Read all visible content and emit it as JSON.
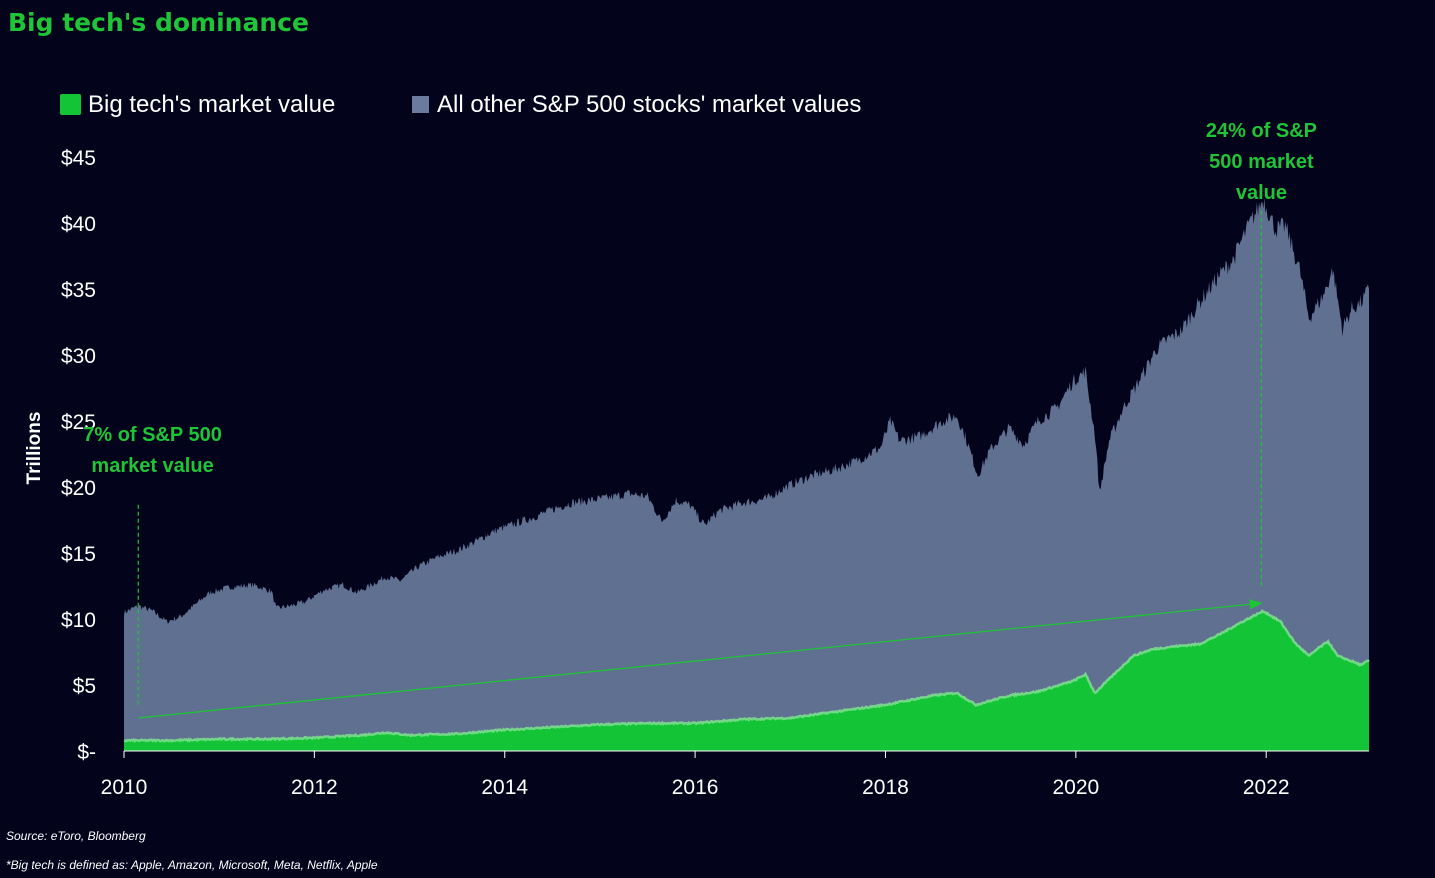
{
  "chart_data": {
    "type": "area",
    "title": "Big tech's dominance",
    "ylabel": "Trillions",
    "xlabel": "",
    "ylim": [
      0,
      45
    ],
    "xlim": [
      2010.0,
      2023.1
    ],
    "y_ticks": [
      0,
      5,
      10,
      15,
      20,
      25,
      30,
      35,
      40,
      45
    ],
    "y_tick_labels": [
      "$-",
      "$5",
      "$10",
      "$15",
      "$20",
      "$25",
      "$30",
      "$35",
      "$40",
      "$45"
    ],
    "x_ticks": [
      2010,
      2012,
      2014,
      2016,
      2018,
      2020,
      2022
    ],
    "x_tick_labels": [
      "2010",
      "2012",
      "2014",
      "2016",
      "2018",
      "2020",
      "2022"
    ],
    "grid": false,
    "legend_position": "top-left",
    "stacking": "overlay",
    "series": [
      {
        "name": "All other S&P 500 stocks' market values",
        "color": "#5f7090",
        "points": [
          [
            2010.0,
            10.5
          ],
          [
            2010.15,
            11.0
          ],
          [
            2010.3,
            10.6
          ],
          [
            2010.45,
            9.8
          ],
          [
            2010.6,
            10.2
          ],
          [
            2010.75,
            11.1
          ],
          [
            2010.9,
            12.0
          ],
          [
            2011.1,
            12.4
          ],
          [
            2011.35,
            12.6
          ],
          [
            2011.55,
            12.1
          ],
          [
            2011.6,
            10.8
          ],
          [
            2011.75,
            11.0
          ],
          [
            2011.9,
            11.3
          ],
          [
            2012.1,
            12.2
          ],
          [
            2012.3,
            12.6
          ],
          [
            2012.45,
            12.0
          ],
          [
            2012.6,
            12.6
          ],
          [
            2012.75,
            13.2
          ],
          [
            2012.9,
            12.9
          ],
          [
            2013.1,
            14.0
          ],
          [
            2013.3,
            14.7
          ],
          [
            2013.5,
            15.2
          ],
          [
            2013.7,
            15.9
          ],
          [
            2013.9,
            16.7
          ],
          [
            2014.1,
            17.2
          ],
          [
            2014.3,
            17.7
          ],
          [
            2014.5,
            18.3
          ],
          [
            2014.7,
            18.8
          ],
          [
            2014.9,
            19.0
          ],
          [
            2015.1,
            19.2
          ],
          [
            2015.3,
            19.5
          ],
          [
            2015.5,
            19.3
          ],
          [
            2015.65,
            17.4
          ],
          [
            2015.8,
            19.0
          ],
          [
            2015.95,
            18.6
          ],
          [
            2016.1,
            17.1
          ],
          [
            2016.25,
            18.2
          ],
          [
            2016.5,
            18.8
          ],
          [
            2016.75,
            19.1
          ],
          [
            2016.95,
            20.0
          ],
          [
            2017.2,
            20.8
          ],
          [
            2017.45,
            21.3
          ],
          [
            2017.7,
            22.0
          ],
          [
            2017.95,
            23.0
          ],
          [
            2018.05,
            25.0
          ],
          [
            2018.15,
            23.5
          ],
          [
            2018.35,
            23.8
          ],
          [
            2018.6,
            25.0
          ],
          [
            2018.75,
            25.4
          ],
          [
            2018.85,
            23.6
          ],
          [
            2018.97,
            20.9
          ],
          [
            2019.1,
            22.8
          ],
          [
            2019.3,
            24.5
          ],
          [
            2019.45,
            23.2
          ],
          [
            2019.6,
            25.0
          ],
          [
            2019.8,
            26.0
          ],
          [
            2019.97,
            28.0
          ],
          [
            2020.1,
            28.8
          ],
          [
            2020.2,
            24.0
          ],
          [
            2020.25,
            19.6
          ],
          [
            2020.35,
            23.5
          ],
          [
            2020.5,
            26.0
          ],
          [
            2020.7,
            28.5
          ],
          [
            2020.85,
            30.5
          ],
          [
            2020.97,
            31.2
          ],
          [
            2021.1,
            31.8
          ],
          [
            2021.3,
            34.0
          ],
          [
            2021.5,
            36.0
          ],
          [
            2021.65,
            37.2
          ],
          [
            2021.8,
            39.6
          ],
          [
            2021.97,
            41.8
          ],
          [
            2022.1,
            39.5
          ],
          [
            2022.2,
            39.8
          ],
          [
            2022.35,
            36.5
          ],
          [
            2022.45,
            32.8
          ],
          [
            2022.6,
            34.5
          ],
          [
            2022.7,
            36.5
          ],
          [
            2022.8,
            32.0
          ],
          [
            2022.9,
            33.5
          ],
          [
            2023.0,
            34.0
          ],
          [
            2023.08,
            35.0
          ]
        ]
      },
      {
        "name": "Big tech's market value",
        "color": "#12c436",
        "points": [
          [
            2010.0,
            0.8
          ],
          [
            2010.5,
            0.8
          ],
          [
            2011.0,
            0.9
          ],
          [
            2011.5,
            0.9
          ],
          [
            2012.0,
            1.0
          ],
          [
            2012.5,
            1.2
          ],
          [
            2012.75,
            1.4
          ],
          [
            2013.0,
            1.2
          ],
          [
            2013.5,
            1.3
          ],
          [
            2014.0,
            1.6
          ],
          [
            2014.5,
            1.8
          ],
          [
            2015.0,
            2.0
          ],
          [
            2015.5,
            2.1
          ],
          [
            2016.0,
            2.1
          ],
          [
            2016.5,
            2.4
          ],
          [
            2017.0,
            2.5
          ],
          [
            2017.5,
            3.0
          ],
          [
            2018.0,
            3.5
          ],
          [
            2018.5,
            4.2
          ],
          [
            2018.75,
            4.4
          ],
          [
            2018.95,
            3.5
          ],
          [
            2019.3,
            4.2
          ],
          [
            2019.6,
            4.5
          ],
          [
            2019.97,
            5.3
          ],
          [
            2020.1,
            5.8
          ],
          [
            2020.2,
            4.4
          ],
          [
            2020.4,
            5.8
          ],
          [
            2020.6,
            7.2
          ],
          [
            2020.8,
            7.7
          ],
          [
            2021.0,
            7.9
          ],
          [
            2021.3,
            8.1
          ],
          [
            2021.5,
            8.8
          ],
          [
            2021.75,
            9.8
          ],
          [
            2021.97,
            10.6
          ],
          [
            2022.15,
            9.8
          ],
          [
            2022.3,
            8.2
          ],
          [
            2022.45,
            7.2
          ],
          [
            2022.55,
            7.8
          ],
          [
            2022.65,
            8.3
          ],
          [
            2022.75,
            7.2
          ],
          [
            2022.9,
            6.8
          ],
          [
            2023.0,
            6.5
          ],
          [
            2023.08,
            6.9
          ]
        ]
      }
    ],
    "annotations": [
      {
        "text_lines": [
          "7% of S&P 500",
          "market value"
        ],
        "color": "#1ec536",
        "x": 2010.3,
        "y_top": 23.5
      },
      {
        "text_lines": [
          "24% of S&P",
          "500 market",
          "value"
        ],
        "color": "#1ec536",
        "x": 2021.95,
        "y_top": 46.5
      }
    ],
    "arrow": {
      "from": [
        2010.15,
        2.5
      ],
      "to": [
        2021.95,
        11.2
      ],
      "color": "#1ec536"
    },
    "guide_lines": [
      {
        "x": 2010.15,
        "y_from": 3.5,
        "y_to": 18.8
      },
      {
        "x": 2021.95,
        "y_from": 12.5,
        "y_to": 41.0
      }
    ]
  },
  "page": {
    "title": "Big tech's dominance",
    "source": "Source: eToro,  Bloomberg",
    "footnote": "*Big tech is defined as: Apple, Amazon, Microsoft, Meta, Netflix, Apple"
  }
}
